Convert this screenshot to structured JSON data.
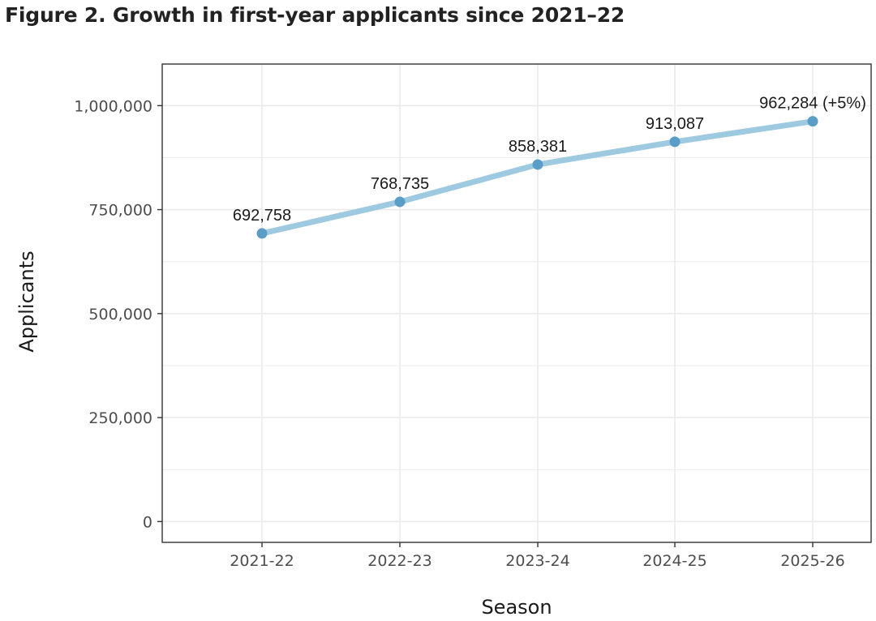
{
  "chart_data": {
    "type": "line",
    "title": "Figure 2. Growth in first-year applicants since 2021–22",
    "xlabel": "Season",
    "ylabel": "Applicants",
    "categories": [
      "2021-22",
      "2022-23",
      "2023-24",
      "2024-25",
      "2025-26"
    ],
    "values": [
      692758,
      768735,
      858381,
      913087,
      962284
    ],
    "data_labels": [
      "692,758",
      "768,735",
      "858,381",
      "913,087",
      "962,284 (+5%)"
    ],
    "ylim": [
      -50000,
      1100000
    ],
    "yticks": [
      0,
      250000,
      500000,
      750000,
      1000000
    ],
    "ytick_labels": [
      "0",
      "250,000",
      "500,000",
      "750,000",
      "1,000,000"
    ],
    "grid": true,
    "colors": {
      "line": "#9ecae1",
      "point": "#5a9ec8",
      "panel_border": "#333333",
      "grid": "#ebebeb"
    }
  }
}
